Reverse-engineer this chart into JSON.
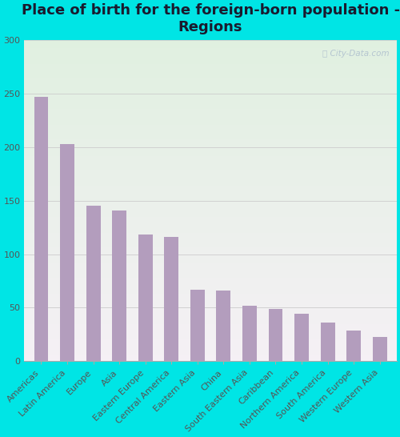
{
  "title": "Place of birth for the foreign-born population -\nRegions",
  "categories": [
    "Americas",
    "Latin America",
    "Europe",
    "Asia",
    "Eastern Europe",
    "Central America",
    "Eastern Asia",
    "China",
    "South Eastern Asia",
    "Caribbean",
    "Northern America",
    "South America",
    "Western Europe",
    "Western Asia"
  ],
  "values": [
    247,
    203,
    145,
    141,
    118,
    116,
    67,
    66,
    52,
    49,
    44,
    36,
    29,
    23
  ],
  "bar_color": "#b39dbd",
  "background_outer": "#00e5e5",
  "plot_bg_top_left": "#e8f5e8",
  "plot_bg_bottom": "#f5f0f5",
  "title_color": "#1a1a2e",
  "tick_label_color": "#555555",
  "ylim": [
    0,
    300
  ],
  "yticks": [
    0,
    50,
    100,
    150,
    200,
    250,
    300
  ],
  "grid_color": "#cccccc",
  "title_fontsize": 13,
  "tick_fontsize": 8,
  "bar_width": 0.55,
  "watermark": "City-Data.com",
  "watermark_color": "#aabbcc"
}
